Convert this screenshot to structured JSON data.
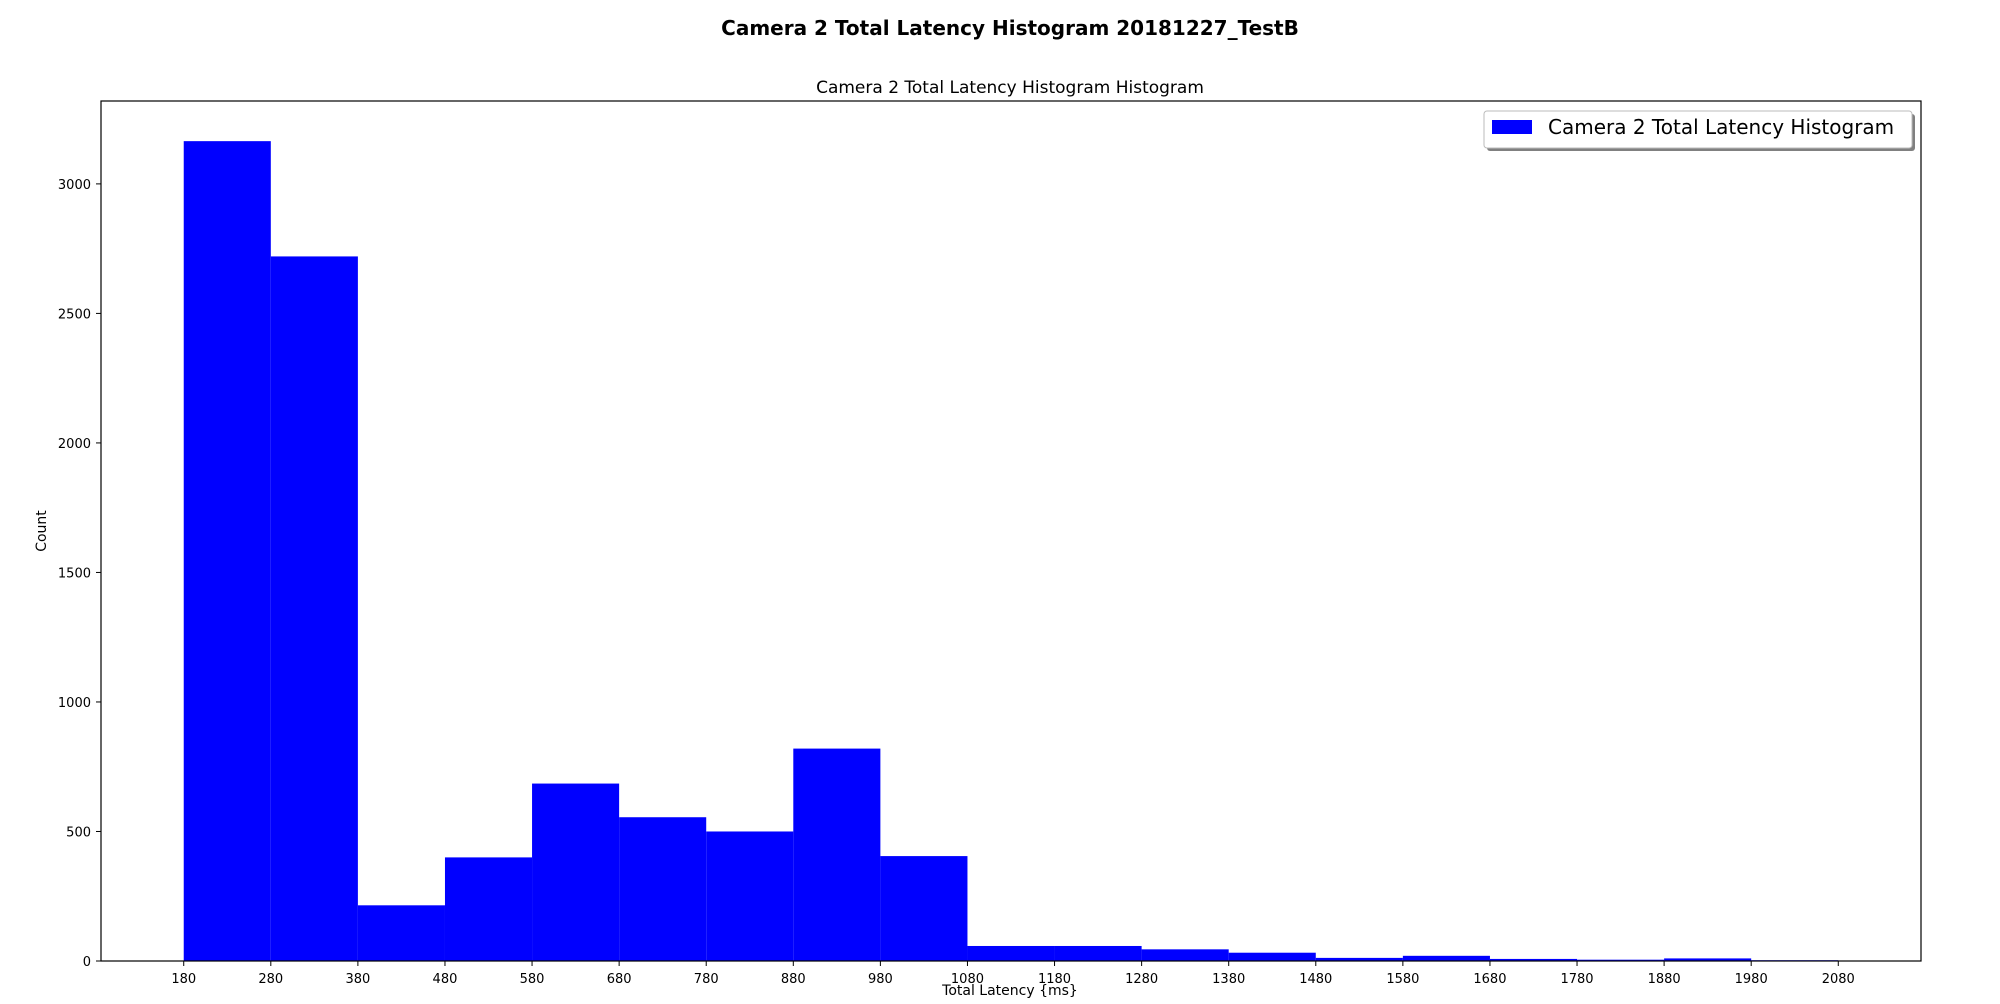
{
  "figure": {
    "suptitle": "Camera 2 Total Latency Histogram 20181227_TestB"
  },
  "chart_data": {
    "type": "bar",
    "title": "Camera 2 Total Latency Histogram Histogram",
    "xlabel": "Total Latency {ms}",
    "ylabel": "Count",
    "bin_edges": [
      180,
      280,
      380,
      480,
      580,
      680,
      780,
      880,
      980,
      1080,
      1180,
      1280,
      1380,
      1480,
      1580,
      1680,
      1780,
      1880,
      1980,
      2080
    ],
    "series": [
      {
        "name": "Camera 2 Total Latency Histogram",
        "values": [
          3165,
          2720,
          215,
          400,
          685,
          555,
          500,
          820,
          405,
          58,
          58,
          45,
          32,
          12,
          20,
          8,
          5,
          10,
          3
        ],
        "color": "#0000ff"
      }
    ],
    "xticks": [
      "180",
      "280",
      "380",
      "480",
      "580",
      "680",
      "780",
      "880",
      "980",
      "1080",
      "1180",
      "1280",
      "1380",
      "1480",
      "1580",
      "1680",
      "1780",
      "1880",
      "1980",
      "2080"
    ],
    "yticks": [
      "0",
      "500",
      "1000",
      "1500",
      "2000",
      "2500",
      "3000"
    ],
    "xlim": [
      85,
      2175
    ],
    "ylim": [
      0,
      3320
    ],
    "grid": false,
    "legend": {
      "placement": "top-right"
    }
  }
}
